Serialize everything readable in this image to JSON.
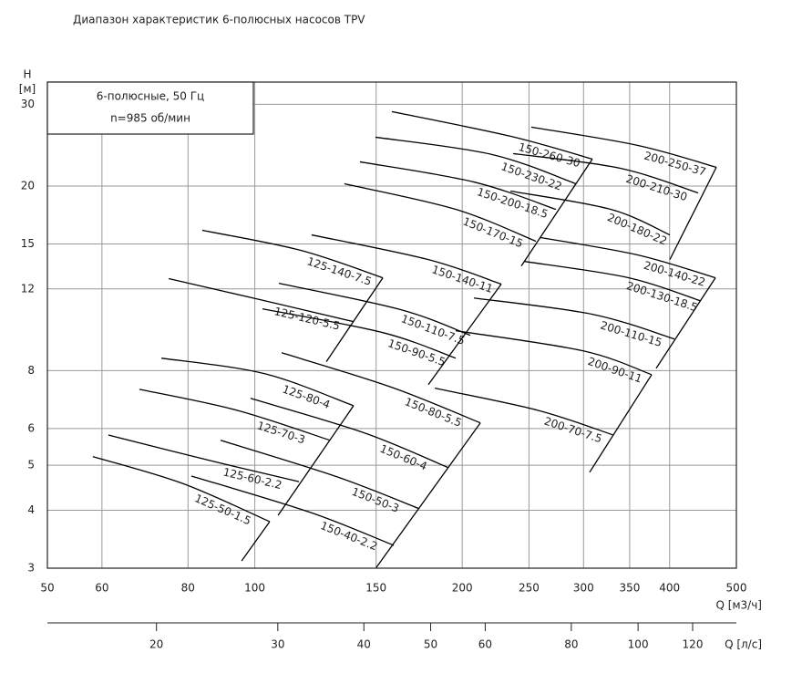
{
  "chart_data": {
    "type": "line",
    "title": "Диапазон характеристик 6-полюсных насосов TPV",
    "box_lines": [
      "6-полюсные, 50 Гц",
      "n=985 об/мин"
    ],
    "ylabel": [
      "H",
      "[м]"
    ],
    "xlabel": "Q [м3/ч]",
    "x2label": "Q [л/с]",
    "xscale": "log",
    "yscale": "log",
    "grid": true,
    "color": "#000000",
    "xlim": [
      50,
      500
    ],
    "xticks": [
      50,
      60,
      80,
      100,
      150,
      200,
      250,
      300,
      350,
      400,
      500
    ],
    "ylim": [
      3,
      33.5
    ],
    "yticks": [
      3,
      4,
      5,
      6,
      8,
      12,
      15,
      20,
      30
    ],
    "x2lim": [
      13.89,
      138.89
    ],
    "x2ticks": [
      20,
      30,
      40,
      50,
      60,
      80,
      100,
      120
    ],
    "series": [
      {
        "name": "125-50-1.5",
        "x": [
          58.2,
          78.5,
          105.1
        ],
        "y": [
          5.22,
          4.57,
          3.78
        ]
      },
      {
        "name": "125-60-2.2",
        "x": [
          61.3,
          86.0,
          115.9
        ],
        "y": [
          5.81,
          5.12,
          4.61
        ]
      },
      {
        "name": "125-70-3",
        "x": [
          68.0,
          94.2,
          128.6
        ],
        "y": [
          7.29,
          6.57,
          5.66
        ]
      },
      {
        "name": "125-80-4",
        "x": [
          73.2,
          103.2,
          139.1
        ],
        "y": [
          8.51,
          7.88,
          6.72
        ]
      },
      {
        "name": "125-120-5.5",
        "x": [
          75.0,
          103.2,
          139.1
        ],
        "y": [
          12.63,
          11.32,
          10.2
        ]
      },
      {
        "name": "125-140-7.5",
        "x": [
          83.9,
          116.6,
          153.4
        ],
        "y": [
          16.05,
          14.53,
          12.68
        ]
      },
      {
        "name": "150-40-2.2",
        "x": [
          80.9,
          120.2,
          159.1
        ],
        "y": [
          4.74,
          3.96,
          3.36
        ]
      },
      {
        "name": "150-50-3",
        "x": [
          89.2,
          131.7,
          173.3
        ],
        "y": [
          5.66,
          4.72,
          4.03
        ]
      },
      {
        "name": "150-60-4",
        "x": [
          98.6,
          144.3,
          191.0
        ],
        "y": [
          6.97,
          5.87,
          4.94
        ]
      },
      {
        "name": "150-80-5.5",
        "x": [
          109.4,
          158.1,
          212.5
        ],
        "y": [
          8.74,
          7.36,
          6.17
        ]
      },
      {
        "name": "150-90-5.5",
        "x": [
          102.6,
          153.4,
          195.7
        ],
        "y": [
          10.87,
          9.66,
          8.51
        ]
      },
      {
        "name": "150-110-7.5",
        "x": [
          108.4,
          163.0,
          205.5
        ],
        "y": [
          12.34,
          10.82,
          9.53
        ]
      },
      {
        "name": "150-140-11",
        "x": [
          120.9,
          178.6,
          227.9
        ],
        "y": [
          15.69,
          13.88,
          12.29
        ]
      },
      {
        "name": "150-170-15",
        "x": [
          134.9,
          195.7,
          255.9
        ],
        "y": [
          20.22,
          17.81,
          15.2
        ]
      },
      {
        "name": "150-200-18.5",
        "x": [
          142.1,
          208.0,
          273.6
        ],
        "y": [
          22.55,
          20.4,
          17.81
        ]
      },
      {
        "name": "150-230-22",
        "x": [
          149.7,
          221.1,
          292.5
        ],
        "y": [
          25.48,
          23.38,
          20.22
        ]
      },
      {
        "name": "150-260-30",
        "x": [
          158.1,
          235.0,
          309.0
        ],
        "y": [
          28.93,
          25.6,
          22.86
        ]
      },
      {
        "name": "200-70-7.5",
        "x": [
          182.5,
          257.4,
          331.4
        ],
        "y": [
          7.33,
          6.57,
          5.81
        ]
      },
      {
        "name": "200-90-11",
        "x": [
          195.7,
          299.8,
          376.7
        ],
        "y": [
          9.75,
          8.82,
          7.84
        ]
      },
      {
        "name": "200-110-15",
        "x": [
          208.0,
          309.0,
          406.5
        ],
        "y": [
          11.47,
          10.58,
          9.36
        ]
      },
      {
        "name": "200-130-18.5",
        "x": [
          245.9,
          349.0,
          442.6
        ],
        "y": [
          13.76,
          12.68,
          11.32
        ]
      },
      {
        "name": "200-140-22",
        "x": [
          259.8,
          359.8,
          466.2
        ],
        "y": [
          15.48,
          14.2,
          12.68
        ]
      },
      {
        "name": "200-180-22",
        "x": [
          235.0,
          328.5,
          400.3
        ],
        "y": [
          19.5,
          17.81,
          15.69
        ]
      },
      {
        "name": "200-210-30",
        "x": [
          237.1,
          338.6,
          439.9
        ],
        "y": [
          23.49,
          21.85,
          19.33
        ]
      },
      {
        "name": "200-250-37",
        "x": [
          252.0,
          359.8,
          467.6
        ],
        "y": [
          26.79,
          24.46,
          21.95
        ]
      }
    ],
    "limit_lines": [
      {
        "x": [
          95.7,
          105.1
        ],
        "y": [
          3.11,
          3.78
        ]
      },
      {
        "x": [
          108.1,
          139.1
        ],
        "y": [
          3.9,
          6.72
        ]
      },
      {
        "x": [
          127.0,
          153.4
        ],
        "y": [
          8.36,
          12.68
        ]
      },
      {
        "x": [
          150.1,
          212.5
        ],
        "y": [
          3.01,
          6.17
        ]
      },
      {
        "x": [
          178.6,
          227.9
        ],
        "y": [
          7.46,
          12.29
        ]
      },
      {
        "x": [
          243.7,
          309.0
        ],
        "y": [
          13.45,
          22.86
        ]
      },
      {
        "x": [
          306.2,
          376.7
        ],
        "y": [
          4.83,
          7.84
        ]
      },
      {
        "x": [
          382.4,
          466.2
        ],
        "y": [
          8.09,
          12.68
        ]
      },
      {
        "x": [
          400.3,
          467.6
        ],
        "y": [
          13.88,
          21.95
        ]
      }
    ]
  }
}
